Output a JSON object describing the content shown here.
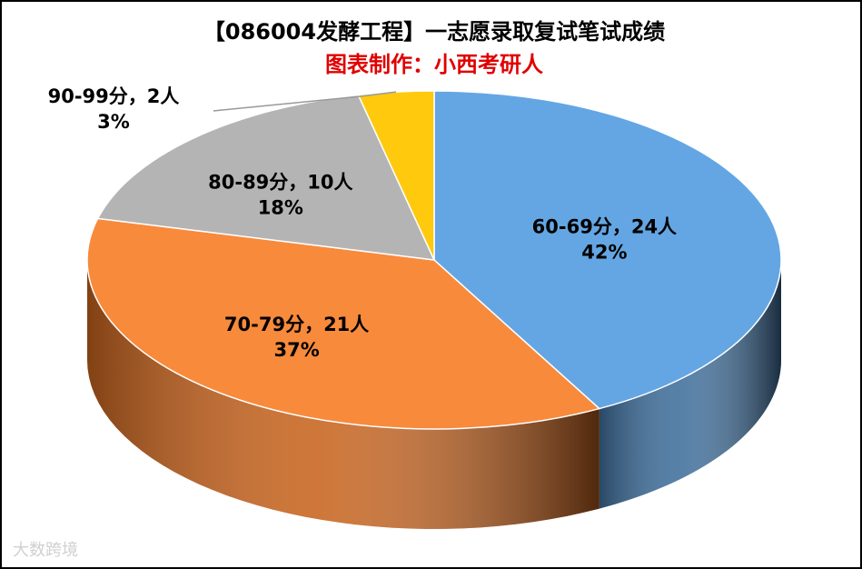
{
  "chart_data": {
    "type": "pie3d",
    "title": "【086004发酵工程】一志愿录取复试笔试成绩",
    "subtitle": "图表制作：小西考研人",
    "values": [
      24,
      21,
      10,
      2
    ],
    "value_labels": [
      "60-69分，24人",
      "70-79分，21人",
      "80-89分，10人",
      "90-99分，2人"
    ],
    "percentages": [
      42,
      37,
      18,
      3
    ],
    "percentage_labels": [
      "42%",
      "37%",
      "18%",
      "3%"
    ],
    "colors": [
      "#64a6e3",
      "#f88a3c",
      "#b4b4b4",
      "#ffc90e"
    ],
    "side_colors": [
      "#3f6f9c",
      "#c8641e",
      "#888888",
      "#c79a00"
    ]
  },
  "watermark": "大数跨境"
}
